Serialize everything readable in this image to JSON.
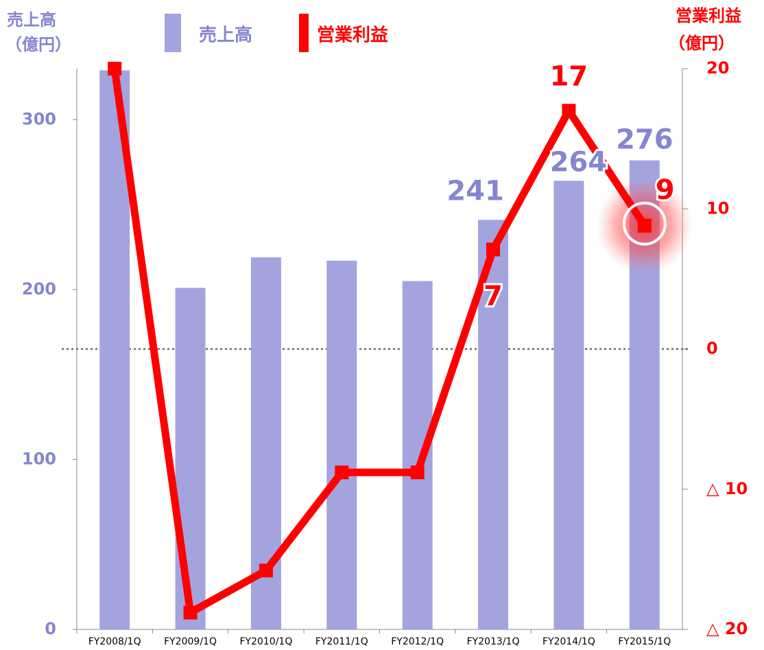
{
  "chart_data": {
    "type": "bar-line",
    "y_label_lines": [
      "売上高",
      "（億円）"
    ],
    "y2_label_lines": [
      "営業利益",
      "（億円）"
    ],
    "categories": [
      "FY2008/1Q",
      "FY2009/1Q",
      "FY2010/1Q",
      "FY2011/1Q",
      "FY2012/1Q",
      "FY2013/1Q",
      "FY2014/1Q",
      "FY2015/1Q"
    ],
    "series": [
      {
        "name": "売上高",
        "type": "bar",
        "color": "#a3a3de",
        "label_color": "#8585d0",
        "values": [
          329,
          201,
          219,
          217,
          205,
          241,
          264,
          276
        ],
        "value_labels": [
          null,
          null,
          null,
          null,
          null,
          "241",
          "264",
          "276"
        ]
      },
      {
        "name": "営業利益",
        "type": "line",
        "axis": "y2",
        "color": "#ff0000",
        "values": [
          20,
          -18.8,
          -15.8,
          -8.8,
          -8.8,
          7.1,
          17,
          8.8
        ],
        "value_labels": [
          null,
          null,
          null,
          null,
          null,
          "7",
          "17",
          "9"
        ]
      }
    ],
    "ylim": [
      0,
      330
    ],
    "yticks": [
      0,
      100,
      200,
      300
    ],
    "y2lim": [
      -20,
      20
    ],
    "y2ticks": [
      {
        "value": -20,
        "label": "△ 20"
      },
      {
        "value": -10,
        "label": "△ 10"
      },
      0,
      10,
      20
    ]
  }
}
